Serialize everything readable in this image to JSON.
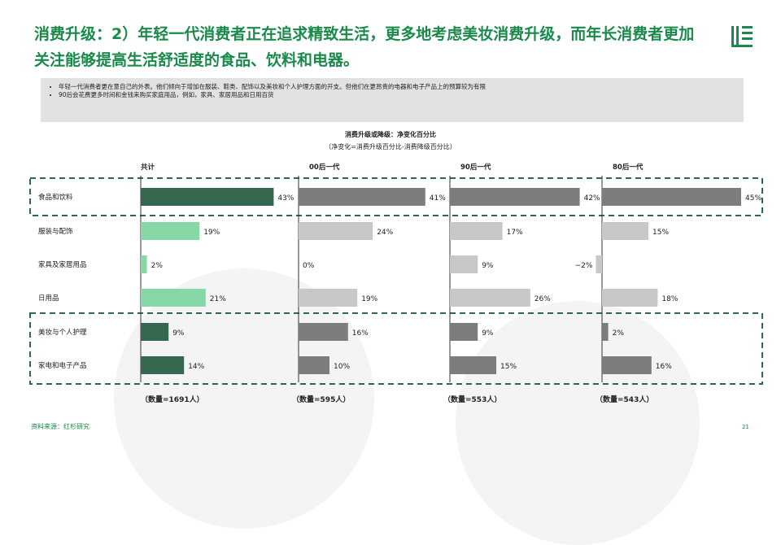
{
  "headline": "消费升级：2）年轻一代消费者正在追求精致生活，更多地考虑美妆消费升级，而年长消费者更加关注能够提高生活舒适度的食品、饮料和电器。",
  "notes": [
    "年轻一代消费者更在意自己的外表。他们倾向于增加在服装、鞋类、配饰以及美妆和个人护理方面的开支。但他们在更昂贵的电器和电子产品上的预算较为有限",
    "90后会花费更多时间和金钱来购买家庭用品，例如，家具、家居用品和日用百货"
  ],
  "source": "资料来源：红杉研究",
  "page_number": "21",
  "colors": {
    "accent_green": "#1a8a4a",
    "dark_green": "#35684f",
    "light_green": "#86d8a7",
    "dark_gray": "#7d7d7d",
    "light_gray": "#c8c8c8",
    "dashed_box": "#2a6a4a"
  },
  "chart_data": {
    "type": "bar",
    "orientation": "horizontal",
    "title": "消费升级或降级：净变化百分比",
    "subtitle": "（净变化=消费升级百分比-消费降级百分比）",
    "categories": [
      "食品和饮料",
      "服装与配饰",
      "家具及家居用品",
      "日用品",
      "美妆与个人护理",
      "家电和电子产品"
    ],
    "series": [
      {
        "name": "共计",
        "values": [
          43,
          19,
          2,
          21,
          9,
          14
        ],
        "labels": [
          "43%",
          "19%",
          "2%",
          "21%",
          "9%",
          "14%"
        ],
        "sample": "（数量=1691人）"
      },
      {
        "name": "00后一代",
        "values": [
          41,
          24,
          0,
          19,
          16,
          10
        ],
        "labels": [
          "41%",
          "24%",
          "0%",
          "19%",
          "16%",
          "10%"
        ],
        "sample": "（数量=595人）"
      },
      {
        "name": "90后一代",
        "values": [
          42,
          17,
          9,
          26,
          9,
          15
        ],
        "labels": [
          "42%",
          "17%",
          "9%",
          "26%",
          "9%",
          "15%"
        ],
        "sample": "（数量=553人）"
      },
      {
        "name": "80后一代",
        "values": [
          45,
          15,
          -2,
          18,
          2,
          16
        ],
        "labels": [
          "45%",
          "15%",
          "−2%",
          "18%",
          "2%",
          "16%"
        ],
        "sample": "（数量=543人）"
      }
    ],
    "highlighted_categories": [
      "食品和饮料",
      "美妆与个人护理",
      "家电和电子产品"
    ],
    "highlight_groups": [
      [
        "食品和饮料"
      ],
      [
        "美妆与个人护理",
        "家电和电子产品"
      ]
    ]
  }
}
